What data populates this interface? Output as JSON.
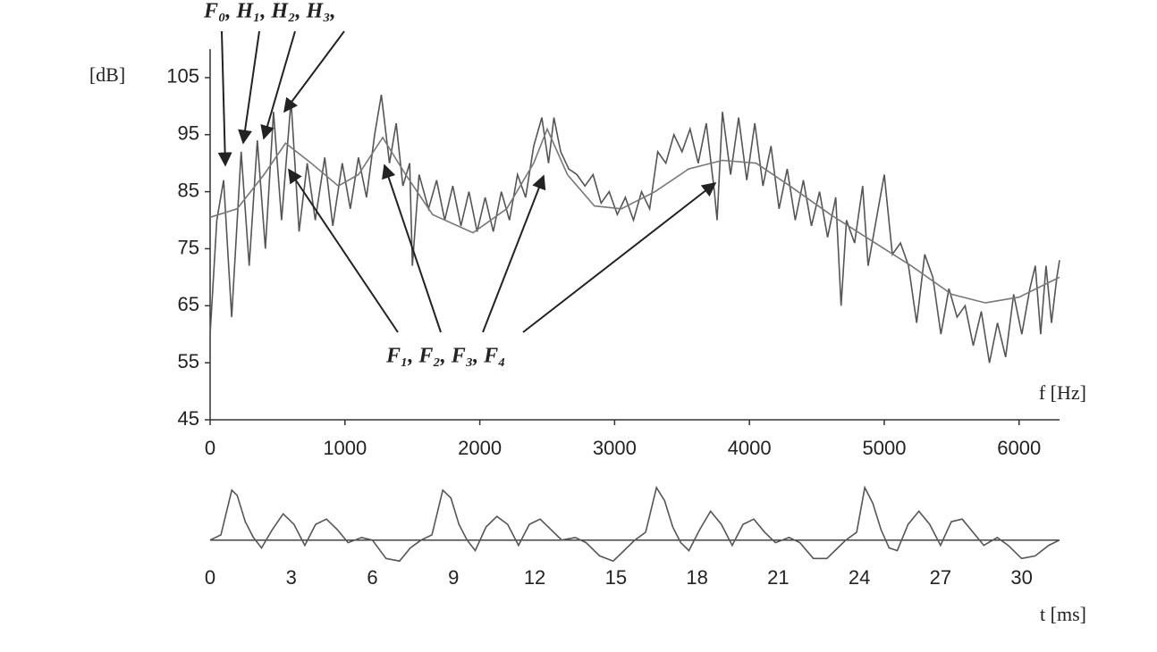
{
  "chart_data": [
    {
      "type": "line",
      "ylabel": "[dB]",
      "xlabel": "f [Hz]",
      "annotations": [
        "F₀, H₁, H₂, H₃,",
        "F₁, F₂, F₃, F₄"
      ],
      "xlim": [
        0,
        6300
      ],
      "xticks": [
        0,
        1000,
        2000,
        3000,
        4000,
        5000,
        6000
      ],
      "ylim": [
        45,
        110
      ],
      "yticks": [
        45,
        55,
        65,
        75,
        85,
        95,
        105
      ],
      "series": [
        {
          "color": "#555555",
          "x": [
            0,
            50,
            100,
            160,
            230,
            290,
            350,
            410,
            470,
            530,
            600,
            660,
            720,
            780,
            850,
            910,
            980,
            1040,
            1100,
            1160,
            1220,
            1270,
            1330,
            1380,
            1430,
            1480,
            1500,
            1550,
            1620,
            1680,
            1740,
            1800,
            1860,
            1920,
            1980,
            2040,
            2100,
            2160,
            2220,
            2280,
            2340,
            2400,
            2460,
            2510,
            2550,
            2600,
            2660,
            2720,
            2780,
            2840,
            2900,
            2960,
            3020,
            3080,
            3140,
            3200,
            3260,
            3320,
            3380,
            3440,
            3500,
            3560,
            3620,
            3680,
            3740,
            3760,
            3800,
            3860,
            3920,
            3980,
            4040,
            4100,
            4160,
            4220,
            4280,
            4340,
            4400,
            4460,
            4520,
            4580,
            4640,
            4680,
            4720,
            4780,
            4840,
            4880,
            4940,
            5000,
            5060,
            5120,
            5180,
            5240,
            5300,
            5360,
            5420,
            5480,
            5540,
            5600,
            5660,
            5720,
            5780,
            5840,
            5900,
            5960,
            6020,
            6080,
            6120,
            6160,
            6200,
            6240,
            6280,
            6300
          ],
          "values": [
            60,
            80,
            87,
            63,
            92,
            72,
            94,
            75,
            99,
            80,
            101,
            78,
            90,
            80,
            91,
            79,
            90,
            82,
            91,
            84,
            95,
            102,
            90,
            97,
            86,
            90,
            72,
            88,
            82,
            87,
            80,
            86,
            79,
            85,
            78,
            84,
            78,
            85,
            80,
            88,
            84,
            93,
            98,
            90,
            98,
            92,
            89,
            88,
            86,
            88,
            83,
            85,
            81,
            84,
            80,
            85,
            82,
            92,
            90,
            95,
            92,
            96,
            90,
            97,
            85,
            80,
            99,
            88,
            98,
            87,
            97,
            86,
            93,
            82,
            89,
            80,
            87,
            79,
            85,
            77,
            84,
            65,
            80,
            76,
            86,
            72,
            80,
            88,
            74,
            76,
            72,
            62,
            74,
            70,
            60,
            68,
            63,
            65,
            58,
            64,
            55,
            62,
            56,
            67,
            60,
            68,
            72,
            60,
            72,
            62,
            70,
            73
          ]
        },
        {
          "color": "#777777",
          "x": [
            0,
            200,
            400,
            560,
            750,
            950,
            1100,
            1280,
            1450,
            1650,
            1950,
            2200,
            2400,
            2500,
            2650,
            2850,
            3050,
            3300,
            3550,
            3800,
            4050,
            4300,
            4600,
            4900,
            5200,
            5500,
            5750,
            6000,
            6300
          ],
          "values": [
            80.5,
            82,
            88,
            93.5,
            90,
            86,
            88,
            94.5,
            88,
            81,
            77.8,
            82,
            90,
            96,
            88,
            82.5,
            82,
            85,
            89,
            90.5,
            90,
            86,
            81,
            76.5,
            72,
            67,
            65.5,
            66.5,
            70
          ]
        }
      ]
    },
    {
      "type": "line",
      "xlabel": "t [ms]",
      "xlim": [
        0,
        31.4
      ],
      "xticks": [
        0,
        3,
        6,
        9,
        12,
        15,
        18,
        21,
        24,
        27,
        30
      ],
      "ylim": [
        -0.6,
        1.1
      ],
      "series": [
        {
          "color": "#555555",
          "x": [
            0,
            0.4,
            0.8,
            1.0,
            1.3,
            1.6,
            1.9,
            2.3,
            2.7,
            3.1,
            3.5,
            3.9,
            4.3,
            4.7,
            5.1,
            5.6,
            6.0,
            6.5,
            7.0,
            7.4,
            7.8,
            8.2,
            8.6,
            8.9,
            9.2,
            9.5,
            9.8,
            10.2,
            10.6,
            11.0,
            11.4,
            11.8,
            12.2,
            12.6,
            13.0,
            13.5,
            13.9,
            14.4,
            14.9,
            15.3,
            15.7,
            16.1,
            16.5,
            16.8,
            17.1,
            17.4,
            17.7,
            18.1,
            18.5,
            18.9,
            19.3,
            19.7,
            20.1,
            20.5,
            20.9,
            21.4,
            21.8,
            22.3,
            22.8,
            23.2,
            23.5,
            23.9,
            24.2,
            24.5,
            24.8,
            25.1,
            25.4,
            25.8,
            26.2,
            26.6,
            27.0,
            27.4,
            27.8,
            28.2,
            28.6,
            29.1,
            29.5,
            30.0,
            30.5,
            31.0,
            31.4
          ],
          "values": [
            0,
            0.1,
            0.95,
            0.85,
            0.35,
            0.05,
            -0.15,
            0.2,
            0.5,
            0.3,
            -0.1,
            0.3,
            0.4,
            0.2,
            -0.05,
            0.05,
            0,
            -0.35,
            -0.4,
            -0.15,
            0,
            0.1,
            0.95,
            0.8,
            0.3,
            0,
            -0.2,
            0.25,
            0.45,
            0.3,
            -0.1,
            0.3,
            0.4,
            0.2,
            0,
            0.05,
            -0.05,
            -0.3,
            -0.4,
            -0.2,
            0,
            0.15,
            1.0,
            0.75,
            0.25,
            -0.05,
            -0.2,
            0.2,
            0.55,
            0.3,
            -0.1,
            0.3,
            0.4,
            0.15,
            -0.05,
            0.05,
            -0.05,
            -0.35,
            -0.35,
            -0.15,
            0,
            0.15,
            1.0,
            0.7,
            0.2,
            -0.15,
            -0.2,
            0.3,
            0.55,
            0.3,
            -0.1,
            0.35,
            0.4,
            0.15,
            -0.1,
            0.05,
            -0.1,
            -0.35,
            -0.3,
            -0.1,
            0
          ]
        }
      ]
    }
  ]
}
